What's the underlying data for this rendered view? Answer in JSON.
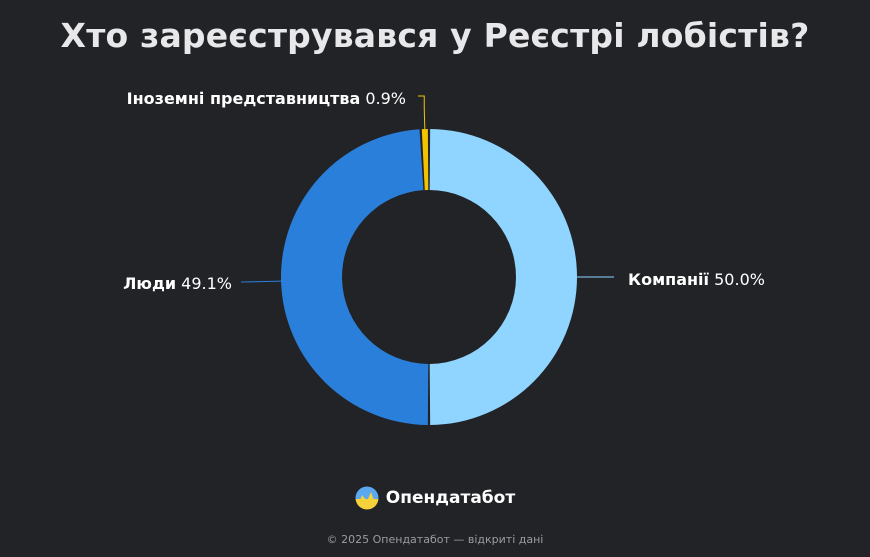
{
  "title": "Хто зареєструвався у Реєстрі лобістів?",
  "chart_data": {
    "type": "pie",
    "donut": true,
    "categories": [
      "Компанії",
      "Люди",
      "Іноземні представництва"
    ],
    "values": [
      50.0,
      49.1,
      0.9
    ],
    "value_labels": [
      "50.0%",
      "49.1%",
      "0.9%"
    ],
    "colors": [
      "#90d5ff",
      "#2a7fdb",
      "#f2c400"
    ],
    "label_positions": [
      "right",
      "left",
      "top-left"
    ]
  },
  "brand": {
    "name": "Опендатабот",
    "icon": "opendatabot-logo-icon"
  },
  "footer": "© 2025 Опендатабот — відкриті дані"
}
